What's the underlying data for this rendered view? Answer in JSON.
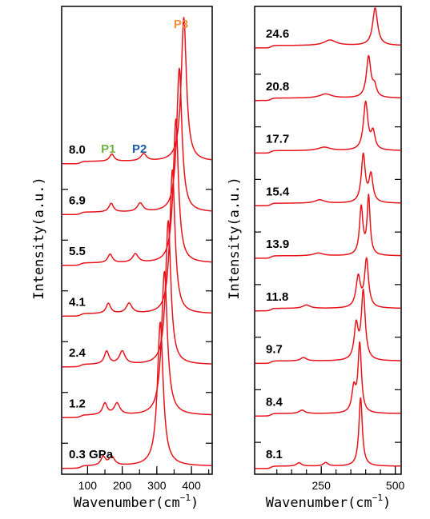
{
  "chart_data": [
    {
      "type": "line",
      "panel": "left",
      "xlabel": "Wavenumber",
      "xlabel_unit": "(cm",
      "xlabel_sup": "−1",
      "xlabel_close": ")",
      "ylabel": "Intensity(a.u.)",
      "xlim": [
        25,
        460
      ],
      "xticks": [
        100,
        150,
        200,
        250,
        300,
        350,
        400,
        450
      ],
      "xtick_labels": [
        "100",
        "200",
        "300",
        "400"
      ],
      "xtick_label_values": [
        100,
        200,
        300,
        400
      ],
      "peak_labels": [
        {
          "text": "P1",
          "color": "#6cb43f",
          "x": 160,
          "spectrum": "8.0"
        },
        {
          "text": "P2",
          "color": "#1a5aa6",
          "x": 250,
          "spectrum": "8.0"
        },
        {
          "text": "P3",
          "color": "#f0913a",
          "x": 370,
          "spectrum": "8.0"
        }
      ],
      "series": [
        {
          "label": "0.3 GPa",
          "peaks": [
            [
              310,
              10,
              1.0
            ],
            [
              145,
              8,
              0.06
            ],
            [
              170,
              10,
              0.06
            ]
          ]
        },
        {
          "label": "1.2",
          "peaks": [
            [
              322,
              10,
              1.0
            ],
            [
              150,
              8,
              0.08
            ],
            [
              185,
              10,
              0.08
            ]
          ]
        },
        {
          "label": "2.4",
          "peaks": [
            [
              333,
              9,
              1.0
            ],
            [
              155,
              8,
              0.09
            ],
            [
              200,
              10,
              0.09
            ]
          ]
        },
        {
          "label": "4.1",
          "peaks": [
            [
              345,
              9,
              1.0
            ],
            [
              160,
              8,
              0.07
            ],
            [
              220,
              10,
              0.07
            ]
          ]
        },
        {
          "label": "5.5",
          "peaks": [
            [
              355,
              9,
              1.0
            ],
            [
              165,
              8,
              0.06
            ],
            [
              238,
              10,
              0.06
            ]
          ]
        },
        {
          "label": "6.9",
          "peaks": [
            [
              365,
              9,
              1.0
            ],
            [
              168,
              8,
              0.06
            ],
            [
              252,
              10,
              0.06
            ]
          ]
        },
        {
          "label": "8.0",
          "peaks": [
            [
              378,
              9,
              1.0
            ],
            [
              170,
              8,
              0.05
            ],
            [
              262,
              10,
              0.05
            ]
          ]
        }
      ]
    },
    {
      "type": "line",
      "panel": "right",
      "xlabel": "Wavenumber",
      "xlabel_unit": "(cm",
      "xlabel_sup": "−1",
      "xlabel_close": ")",
      "ylabel": "Intensity(a.u.)",
      "xlim": [
        25,
        520
      ],
      "xticks": [
        100,
        150,
        200,
        250,
        300,
        350,
        400,
        450,
        500
      ],
      "xtick_labels": [
        "250",
        "500"
      ],
      "xtick_label_values": [
        250,
        500
      ],
      "series": [
        {
          "label": "8.1",
          "peaks": [
            [
              383,
              7,
              1.0
            ],
            [
              175,
              10,
              0.05
            ],
            [
              265,
              10,
              0.05
            ]
          ]
        },
        {
          "label": "8.4",
          "peaks": [
            [
              380,
              7,
              1.0
            ],
            [
              360,
              8,
              0.35
            ],
            [
              185,
              12,
              0.05
            ]
          ]
        },
        {
          "label": "9.7",
          "peaks": [
            [
              392,
              8,
              1.0
            ],
            [
              368,
              8,
              0.5
            ],
            [
              190,
              12,
              0.05
            ]
          ]
        },
        {
          "label": "11.8",
          "peaks": [
            [
              403,
              8,
              0.7
            ],
            [
              375,
              9,
              0.45
            ],
            [
              200,
              15,
              0.05
            ]
          ]
        },
        {
          "label": "13.9",
          "peaks": [
            [
              410,
              6,
              0.85
            ],
            [
              385,
              7,
              0.7
            ],
            [
              240,
              20,
              0.04
            ]
          ]
        },
        {
          "label": "15.4",
          "peaks": [
            [
              392,
              8,
              0.7
            ],
            [
              418,
              8,
              0.4
            ],
            [
              245,
              20,
              0.05
            ]
          ]
        },
        {
          "label": "17.7",
          "peaks": [
            [
              400,
              9,
              0.7
            ],
            [
              425,
              8,
              0.25
            ],
            [
              260,
              25,
              0.05
            ]
          ]
        },
        {
          "label": "20.8",
          "peaks": [
            [
              410,
              9,
              0.6
            ],
            [
              430,
              8,
              0.15
            ],
            [
              265,
              25,
              0.06
            ]
          ]
        },
        {
          "label": "24.6",
          "peaks": [
            [
              432,
              10,
              0.55
            ],
            [
              280,
              25,
              0.08
            ]
          ]
        }
      ]
    }
  ]
}
